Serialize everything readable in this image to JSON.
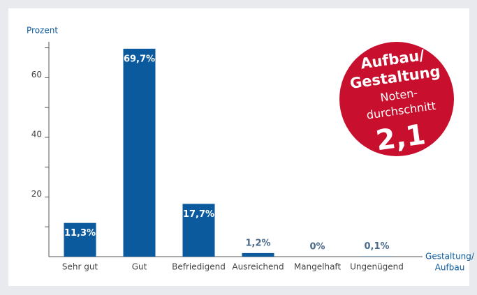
{
  "chart_data": {
    "type": "bar",
    "y_label": "Prozent",
    "x_label": [
      "Gestaltung/",
      "Aufbau"
    ],
    "categories": [
      "Sehr gut",
      "Gut",
      "Befriedigend",
      "Ausreichend",
      "Mangelhaft",
      "Ungenügend"
    ],
    "values": [
      11.3,
      69.7,
      17.7,
      1.2,
      0,
      0.1
    ],
    "value_labels": [
      "11,3%",
      "69,7%",
      "17,7%",
      "1,2%",
      "0%",
      "0,1%"
    ],
    "color": "#0b5a9e",
    "ylim": [
      0,
      72
    ],
    "yticks": [
      20,
      40,
      60
    ],
    "minor_yticks": [
      10,
      30,
      50,
      70
    ],
    "badge": {
      "lines": [
        "Aufbau/",
        "Gestaltung"
      ],
      "sub": [
        "Noten-",
        "durchschnitt"
      ],
      "grade": "2,1",
      "color": "#c8102e"
    }
  }
}
